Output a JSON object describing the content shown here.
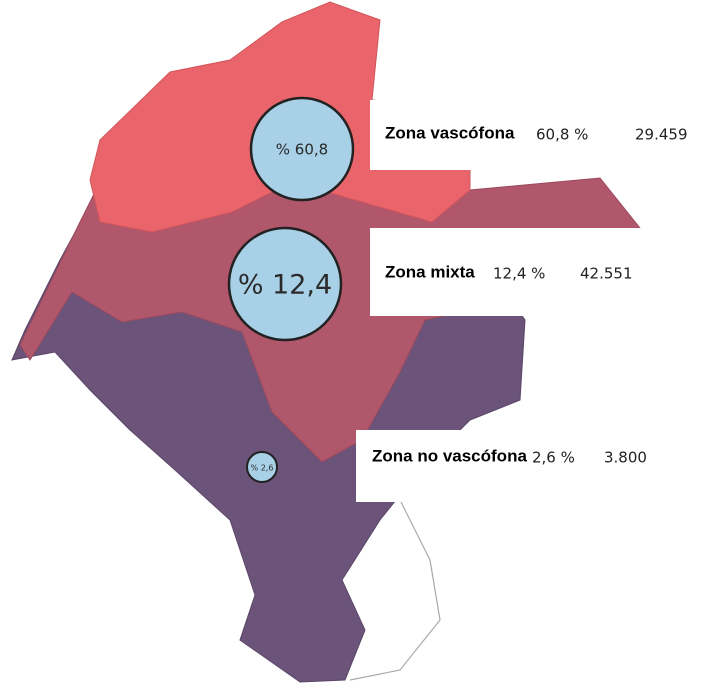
{
  "zones": [
    {
      "circle_label": "% 60,8",
      "name": "Zona vascófona",
      "percent": "60,8 %",
      "count": "29.459"
    },
    {
      "circle_label": "% 12,4",
      "name": "Zona mixta",
      "percent": "12,4 %",
      "count": "42.551"
    },
    {
      "circle_label": "% 2,6",
      "name": "Zona no vascófona",
      "percent": "2,6 %",
      "count": "3.800"
    }
  ]
}
